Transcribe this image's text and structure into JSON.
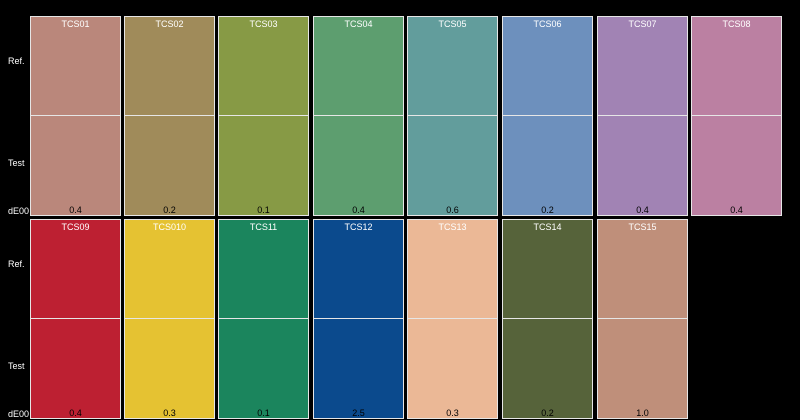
{
  "labels": {
    "ref": "Ref.",
    "test": "Test",
    "de": "dE00"
  },
  "rows": [
    [
      {
        "name": "TCS01",
        "color": "#ba877b",
        "de": "0.4"
      },
      {
        "name": "TCS02",
        "color": "#a08b5a",
        "de": "0.2"
      },
      {
        "name": "TCS03",
        "color": "#879a45",
        "de": "0.1"
      },
      {
        "name": "TCS04",
        "color": "#5d9e6f",
        "de": "0.4"
      },
      {
        "name": "TCS05",
        "color": "#629d9c",
        "de": "0.6"
      },
      {
        "name": "TCS06",
        "color": "#6d90bd",
        "de": "0.2"
      },
      {
        "name": "TCS07",
        "color": "#a183b4",
        "de": "0.4"
      },
      {
        "name": "TCS08",
        "color": "#bb80a2",
        "de": "0.4"
      }
    ],
    [
      {
        "name": "TCS09",
        "color": "#bd2032",
        "de": "0.4"
      },
      {
        "name": "TCS010",
        "color": "#e5c232",
        "de": "0.3"
      },
      {
        "name": "TCS11",
        "color": "#1b855d",
        "de": "0.1"
      },
      {
        "name": "TCS12",
        "color": "#0b4a8d",
        "de": "2.5"
      },
      {
        "name": "TCS13",
        "color": "#ebb896",
        "de": "0.3"
      },
      {
        "name": "TCS14",
        "color": "#56633a",
        "de": "0.2"
      },
      {
        "name": "TCS15",
        "color": "#bf8f7a",
        "de": "1.0"
      }
    ]
  ]
}
